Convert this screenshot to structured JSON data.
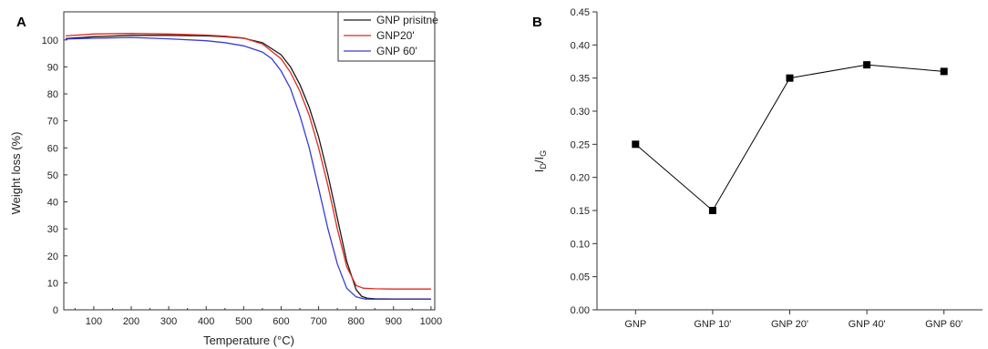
{
  "chart_data": [
    {
      "panel": "A",
      "type": "line",
      "title": "",
      "xlabel": "Temperature (°C)",
      "ylabel": "Weight loss (%)",
      "xlim": [
        20,
        1010
      ],
      "ylim": [
        0,
        105
      ],
      "xticks": [
        100,
        200,
        300,
        400,
        500,
        600,
        700,
        800,
        900,
        1000
      ],
      "yticks": [
        0,
        10,
        20,
        30,
        40,
        50,
        60,
        70,
        80,
        90,
        100
      ],
      "grid": false,
      "legend": "top-right",
      "series": [
        {
          "name": "GNP prisitne",
          "color": "#1a1a1a",
          "x": [
            25,
            100,
            200,
            300,
            400,
            450,
            500,
            550,
            600,
            625,
            650,
            675,
            700,
            725,
            750,
            775,
            800,
            815,
            830,
            850,
            900,
            950,
            1000
          ],
          "y": [
            100.5,
            101.2,
            101.7,
            101.7,
            101.5,
            101.2,
            100.6,
            99.0,
            94.5,
            90.0,
            83.5,
            75.0,
            64.0,
            50.0,
            34.0,
            18.0,
            7.5,
            5.0,
            4.3,
            4.1,
            4.0,
            4.0,
            4.0
          ]
        },
        {
          "name": "GNP20'",
          "color": "#e0281e",
          "x": [
            25,
            100,
            200,
            300,
            400,
            450,
            500,
            550,
            600,
            625,
            650,
            675,
            700,
            725,
            750,
            775,
            800,
            820,
            850,
            900,
            950,
            1000
          ],
          "y": [
            101.5,
            102.2,
            102.4,
            102.2,
            101.8,
            101.4,
            100.7,
            98.5,
            93.0,
            88.0,
            81.0,
            72.0,
            60.0,
            46.0,
            30.0,
            16.0,
            9.0,
            8.0,
            7.8,
            7.7,
            7.7,
            7.7
          ]
        },
        {
          "name": "GNP 60'",
          "color": "#3a3ad8",
          "x": [
            25,
            100,
            200,
            300,
            400,
            450,
            500,
            550,
            575,
            600,
            625,
            650,
            675,
            700,
            725,
            750,
            775,
            800,
            825,
            850,
            900,
            1000
          ],
          "y": [
            100.3,
            100.6,
            100.9,
            100.4,
            99.7,
            99.0,
            97.8,
            95.5,
            93.0,
            88.5,
            82.0,
            72.0,
            60.0,
            45.0,
            30.0,
            17.0,
            8.0,
            4.8,
            4.0,
            3.9,
            3.9,
            3.9
          ]
        }
      ]
    },
    {
      "panel": "B",
      "type": "line",
      "title": "",
      "xlabel": "",
      "ylabel": "ID/IG",
      "ylabel_main": "I",
      "ylabel_sub1": "D",
      "ylabel_mid": "/I",
      "ylabel_sub2": "G",
      "ylim": [
        0,
        0.45
      ],
      "yticks": [
        "0.00",
        "0.05",
        "0.10",
        "0.15",
        "0.20",
        "0.25",
        "0.30",
        "0.35",
        "0.40",
        "0.45"
      ],
      "grid": false,
      "categories": [
        "GNP",
        "GNP 10'",
        "GNP 20'",
        "GNP 40'",
        "GNP 60'"
      ],
      "series": [
        {
          "color": "#000000",
          "marker": "square",
          "values": [
            0.25,
            0.15,
            0.35,
            0.37,
            0.36
          ]
        }
      ]
    }
  ]
}
